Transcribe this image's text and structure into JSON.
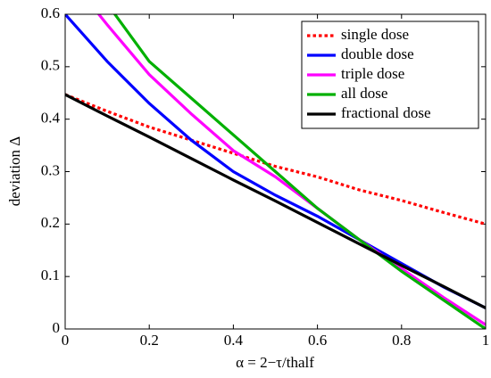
{
  "chart_data": {
    "type": "line",
    "xlabel": "α = 2−τ/thalf",
    "ylabel": "deviation Δ",
    "x": [
      0,
      0.1,
      0.2,
      0.3,
      0.4,
      0.5,
      0.6,
      0.7,
      0.8,
      0.9,
      1
    ],
    "series": [
      {
        "name": "single dose",
        "color": "#ff0000",
        "dash": true,
        "values": [
          0.447,
          0.415,
          0.385,
          0.36,
          0.335,
          0.31,
          0.29,
          0.265,
          0.245,
          0.222,
          0.2
        ]
      },
      {
        "name": "double dose",
        "color": "#0000ff",
        "values": [
          0.6,
          0.51,
          0.43,
          0.36,
          0.3,
          0.255,
          0.215,
          0.17,
          0.125,
          0.08,
          0.04
        ]
      },
      {
        "name": "triple dose",
        "color": "#ff00ff",
        "values": [
          0.68,
          0.58,
          0.485,
          0.41,
          0.34,
          0.29,
          0.23,
          0.17,
          0.115,
          0.06,
          0.008
        ]
      },
      {
        "name": "all dose",
        "color": "#00b000",
        "values": [
          0.72,
          0.62,
          0.51,
          0.44,
          0.37,
          0.3,
          0.23,
          0.17,
          0.11,
          0.055,
          0
        ]
      },
      {
        "name": "fractional dose",
        "color": "#000000",
        "values": [
          0.447,
          0.406,
          0.366,
          0.325,
          0.284,
          0.244,
          0.203,
          0.162,
          0.121,
          0.081,
          0.04
        ]
      }
    ],
    "xlim": [
      0,
      1
    ],
    "ylim": [
      0,
      0.6
    ],
    "xticks": [
      0,
      0.2,
      0.4,
      0.6,
      0.8,
      1
    ],
    "yticks": [
      0,
      0.1,
      0.2,
      0.3,
      0.4,
      0.5,
      0.6
    ],
    "legend": "upper right"
  }
}
